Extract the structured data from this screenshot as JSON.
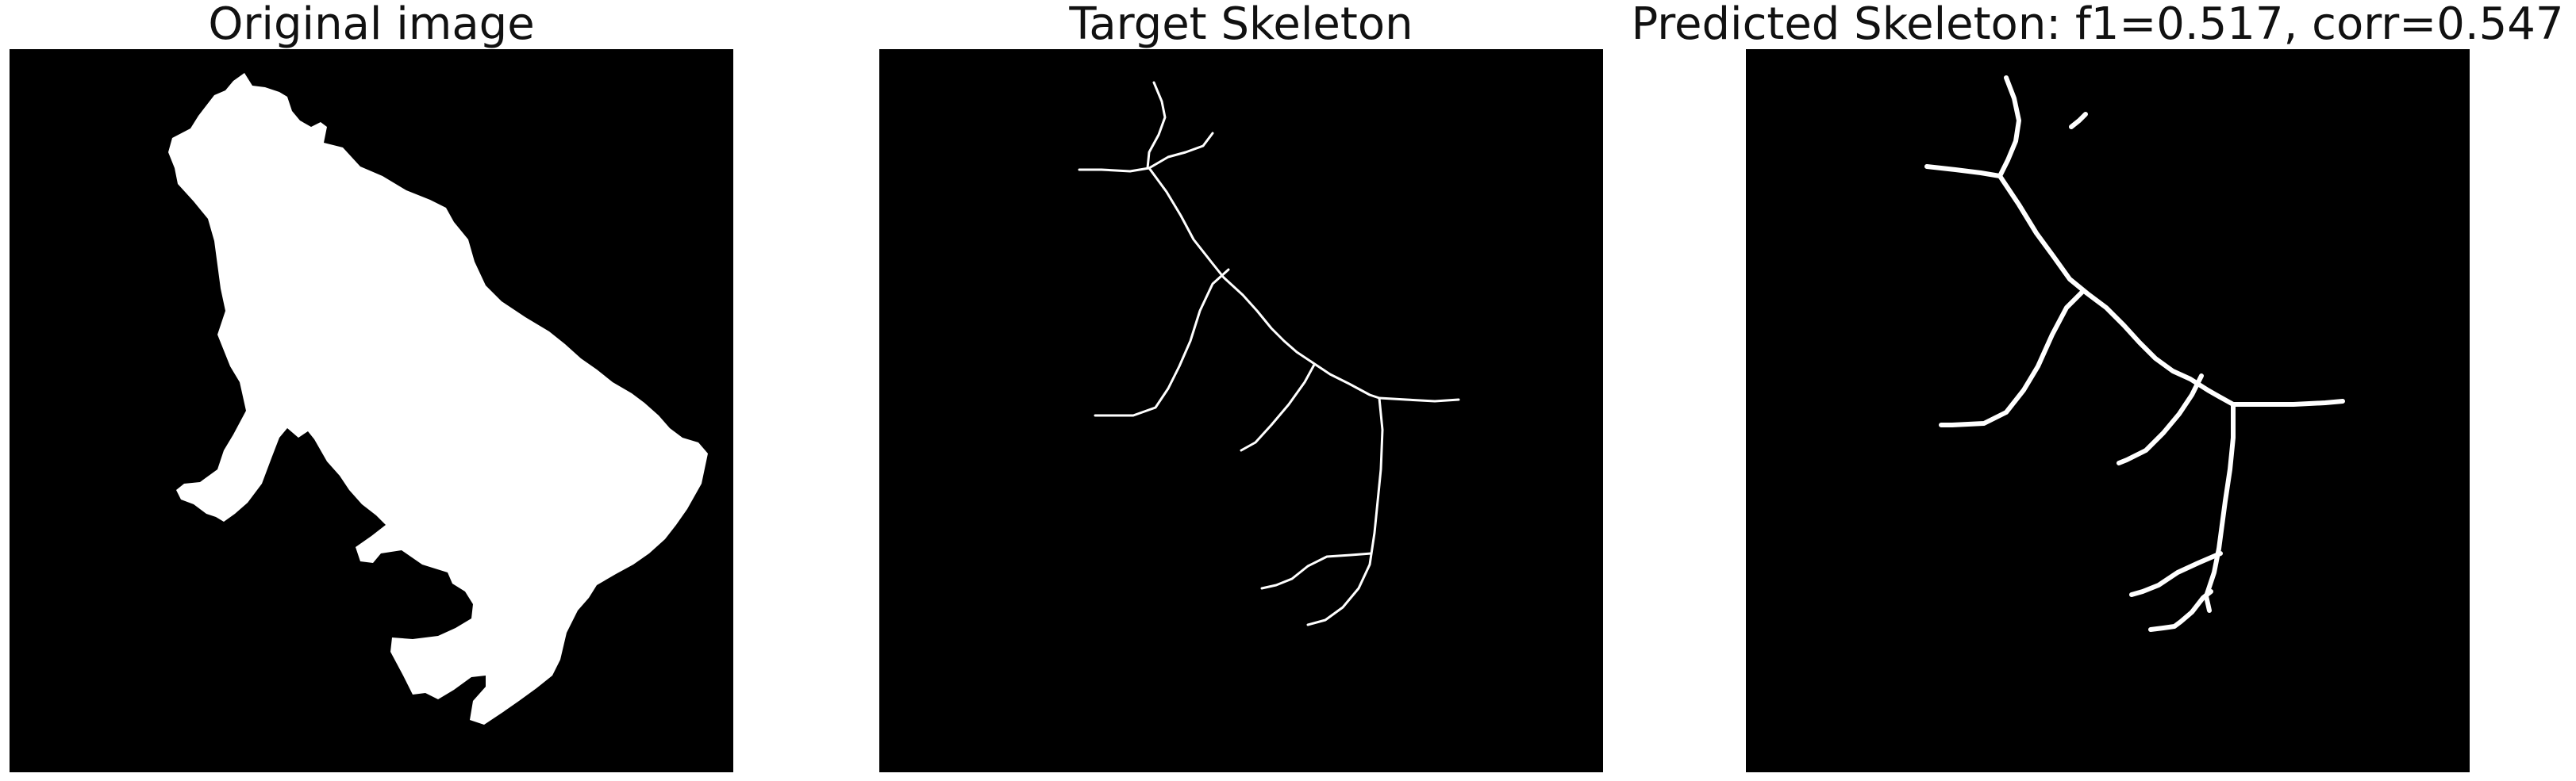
{
  "panels": [
    {
      "title": "Original image",
      "icon": "silhouette-mask-image"
    },
    {
      "title": "Target Skeleton",
      "icon": "skeleton-thin-lines-image"
    },
    {
      "title": "Predicted Skeleton: f1=0.517, corr=0.547",
      "icon": "skeleton-thick-lines-image"
    }
  ],
  "colors": {
    "background": "#ffffff",
    "panel": "#000000",
    "foreground": "#ffffff",
    "title_text": "#111111"
  }
}
